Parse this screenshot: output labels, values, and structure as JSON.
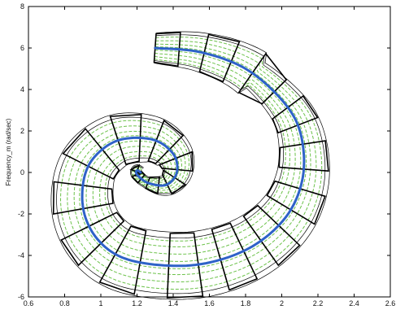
{
  "chart_data": {
    "type": "line",
    "title": "",
    "xlabel": "",
    "ylabel": "Frequency_m (rad/sec)",
    "xlim": [
      0.6,
      2.6
    ],
    "ylim": [
      -6,
      8
    ],
    "grid": false,
    "xticks": [
      0.6,
      0.8,
      1,
      1.2,
      1.4,
      1.6,
      1.8,
      2,
      2.2,
      2.4,
      2.6
    ],
    "xtick_labels": [
      "0.6",
      "0.8",
      "1",
      "1.2",
      "1.4",
      "1.6",
      "1.8",
      "2",
      "2.2",
      "2.4",
      "2.6"
    ],
    "yticks": [
      -6,
      -4,
      -2,
      0,
      2,
      4,
      6,
      8
    ],
    "ytick_labels": [
      "-6",
      "-4",
      "-2",
      "0",
      "2",
      "4",
      "6",
      "8"
    ],
    "colors": {
      "nominal": "#2e62c8",
      "samples": "#6cc24a",
      "envelope": "#000000",
      "boxes": "#000000"
    },
    "series": [
      {
        "style": "nominal",
        "x": [
          1.3,
          1.55,
          1.8,
          2.0,
          2.1,
          2.12,
          2.05,
          1.9,
          1.7,
          1.45,
          1.15,
          0.98,
          0.9,
          0.93,
          1.08,
          1.28,
          1.4,
          1.42,
          1.36,
          1.26,
          1.2,
          1.2,
          1.22
        ],
        "y": [
          6,
          5.8,
          5.0,
          3.5,
          2.0,
          0.0,
          -1.8,
          -3.2,
          -4.1,
          -4.5,
          -4.2,
          -3.2,
          -1.6,
          0.3,
          1.5,
          1.6,
          0.9,
          0.0,
          -0.6,
          -0.5,
          -0.1,
          0.1,
          0.0
        ]
      }
    ],
    "annotations": "uncertainty boxes along trajectory"
  }
}
